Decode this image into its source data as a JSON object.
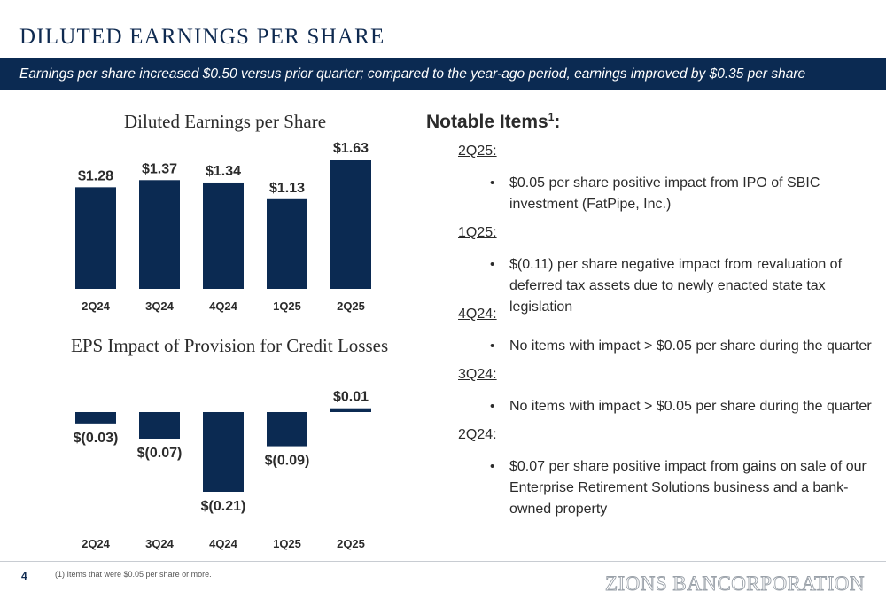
{
  "title": "DILUTED EARNINGS PER SHARE",
  "banner": "Earnings per share increased $0.50 versus prior quarter; compared to the year-ago period, earnings improved by $0.35 per share",
  "chart_data": [
    {
      "type": "bar",
      "title": "Diluted Earnings per Share",
      "categories": [
        "2Q24",
        "3Q24",
        "4Q24",
        "1Q25",
        "2Q25"
      ],
      "values": [
        1.28,
        1.37,
        1.34,
        1.13,
        1.63
      ],
      "value_labels": [
        "$1.28",
        "$1.37",
        "$1.34",
        "$1.13",
        "$1.63"
      ],
      "ylim": [
        0,
        1.63
      ],
      "color": "#0b2a52",
      "grid": false
    },
    {
      "type": "bar",
      "title": "EPS Impact of Provision for Credit Losses",
      "categories": [
        "2Q24",
        "3Q24",
        "4Q24",
        "1Q25",
        "2Q25"
      ],
      "values": [
        -0.03,
        -0.07,
        -0.21,
        -0.09,
        0.01
      ],
      "value_labels": [
        "$(0.03)",
        "$(0.07)",
        "$(0.21)",
        "$(0.09)",
        "$0.01"
      ],
      "ylim": [
        -0.21,
        0.01
      ],
      "color": "#0b2a52",
      "grid": false
    }
  ],
  "notable": {
    "title": "Notable Items",
    "sup": "1",
    "colon": ":",
    "sections": [
      {
        "quarter": "2Q25:",
        "items": [
          "$0.05 per share positive impact from IPO of SBIC investment (FatPipe, Inc.)"
        ]
      },
      {
        "quarter": "1Q25:",
        "items": [
          "$(0.11) per share negative impact from revaluation of deferred tax assets due to newly enacted state tax legislation"
        ]
      },
      {
        "quarter": "4Q24:",
        "items": [
          "No items with impact > $0.05 per share during the quarter"
        ]
      },
      {
        "quarter": "3Q24:",
        "items": [
          "No items with impact > $0.05 per share during the quarter"
        ]
      },
      {
        "quarter": "2Q24:",
        "items": [
          "$0.07 per share positive impact from gains on sale of our Enterprise Retirement Solutions business and a bank-owned property"
        ]
      }
    ],
    "bullet_glyph": "•"
  },
  "footer": {
    "page_number": "4",
    "footnote": "(1) Items that were $0.05 per share or more.",
    "logo": "ZIONS BANCORPORATION"
  }
}
